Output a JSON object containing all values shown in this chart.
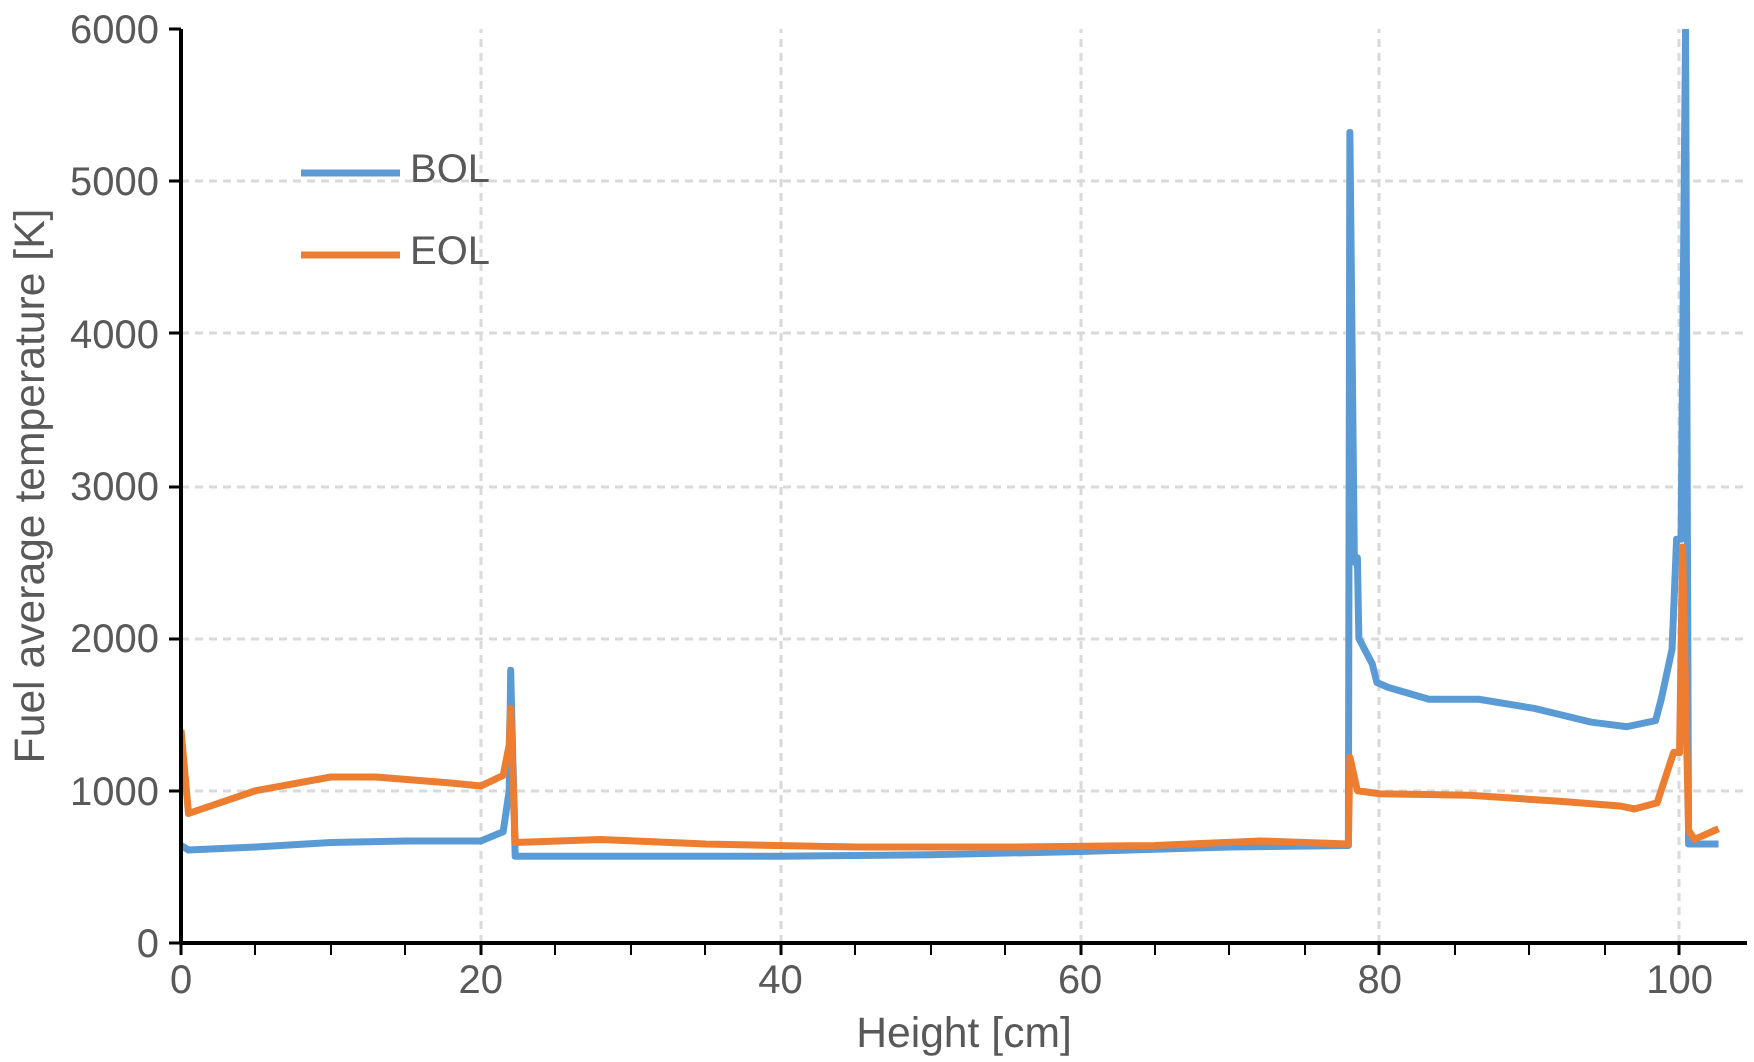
{
  "chart_data": {
    "type": "line",
    "xlabel": "Height [cm]",
    "ylabel": "Fuel average temperature [K]",
    "xlim": [
      0,
      104.5
    ],
    "xticks": [
      0,
      20,
      40,
      60,
      80,
      100
    ],
    "ylim": [
      0,
      6000
    ],
    "yticks": [
      0,
      1000,
      2000,
      3000,
      4000,
      5000,
      6000
    ],
    "grid": true,
    "legend": "top left",
    "line_style": "solid",
    "marker": "none",
    "series": [
      {
        "name": "BOL",
        "color": "#5b9bd5",
        "x": [
          0,
          0.5,
          5,
          10,
          15,
          20,
          21.5,
          21.9,
          22.0,
          22.3,
          30,
          40,
          50,
          60,
          70,
          77.9,
          78.0,
          78.3,
          78.5,
          78.6,
          79.5,
          79.8,
          80.5,
          83.3,
          86.6,
          90.3,
          94.1,
          96.5,
          98.4,
          98.8,
          99.5,
          99.8,
          100.1,
          100.4,
          100.6,
          102.6
        ],
        "values": [
          640,
          610,
          630,
          660,
          670,
          670,
          730,
          1000,
          1790,
          570,
          570,
          570,
          580,
          600,
          630,
          640,
          5320,
          2500,
          2530,
          2000,
          1830,
          1710,
          1680,
          1600,
          1600,
          1540,
          1450,
          1420,
          1460,
          1610,
          1930,
          2650,
          2650,
          6000,
          650,
          650
        ]
      },
      {
        "name": "EOL",
        "color": "#ed7d31",
        "x": [
          0,
          0.5,
          5,
          10,
          13,
          18,
          20,
          21.5,
          21.9,
          22.0,
          22.3,
          28,
          35,
          45,
          55,
          65,
          72,
          77.9,
          78.0,
          78.5,
          80,
          86,
          92,
          96,
          97,
          98.5,
          99.6,
          100.0,
          100.2,
          100.6,
          101,
          102.6
        ],
        "values": [
          1400,
          850,
          1000,
          1090,
          1090,
          1050,
          1030,
          1100,
          1300,
          1540,
          660,
          680,
          650,
          630,
          630,
          640,
          670,
          650,
          1220,
          1000,
          980,
          970,
          930,
          900,
          880,
          920,
          1250,
          1250,
          2600,
          740,
          680,
          750
        ]
      }
    ]
  }
}
